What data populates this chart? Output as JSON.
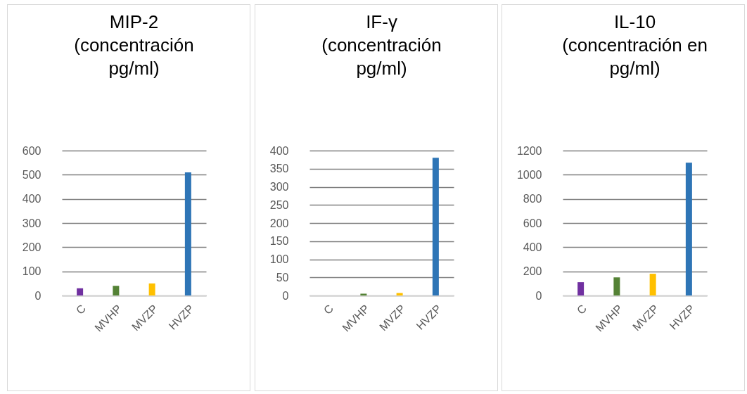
{
  "chart_data": [
    {
      "type": "bar",
      "title": "MIP-2\n(concentración\npg/ml)",
      "categories": [
        "C",
        "MVHP",
        "MVZP",
        "HVZP"
      ],
      "values": [
        30,
        40,
        50,
        510
      ],
      "colors": [
        "#7030a0",
        "#548235",
        "#ffc000",
        "#2e75b6"
      ],
      "ylim": [
        0,
        600
      ],
      "yticks": [
        0,
        100,
        200,
        300,
        400,
        500,
        600
      ],
      "grid": "y"
    },
    {
      "type": "bar",
      "title": "IF-γ\n(concentración\npg/ml)",
      "categories": [
        "C",
        "MVHP",
        "MVZP",
        "HVZP"
      ],
      "values": [
        0,
        5,
        7,
        380
      ],
      "colors": [
        "#7030a0",
        "#548235",
        "#ffc000",
        "#2e75b6"
      ],
      "ylim": [
        0,
        400
      ],
      "yticks": [
        0,
        50,
        100,
        150,
        200,
        250,
        300,
        350,
        400
      ],
      "grid": "y"
    },
    {
      "type": "bar",
      "title": "IL-10\n(concentración en\npg/ml)",
      "categories": [
        "C",
        "MVHP",
        "MVZP",
        "HVZP"
      ],
      "values": [
        110,
        150,
        180,
        1100
      ],
      "colors": [
        "#7030a0",
        "#548235",
        "#ffc000",
        "#2e75b6"
      ],
      "ylim": [
        0,
        1200
      ],
      "yticks": [
        0,
        200,
        400,
        600,
        800,
        1000,
        1200
      ],
      "grid": "y"
    }
  ]
}
